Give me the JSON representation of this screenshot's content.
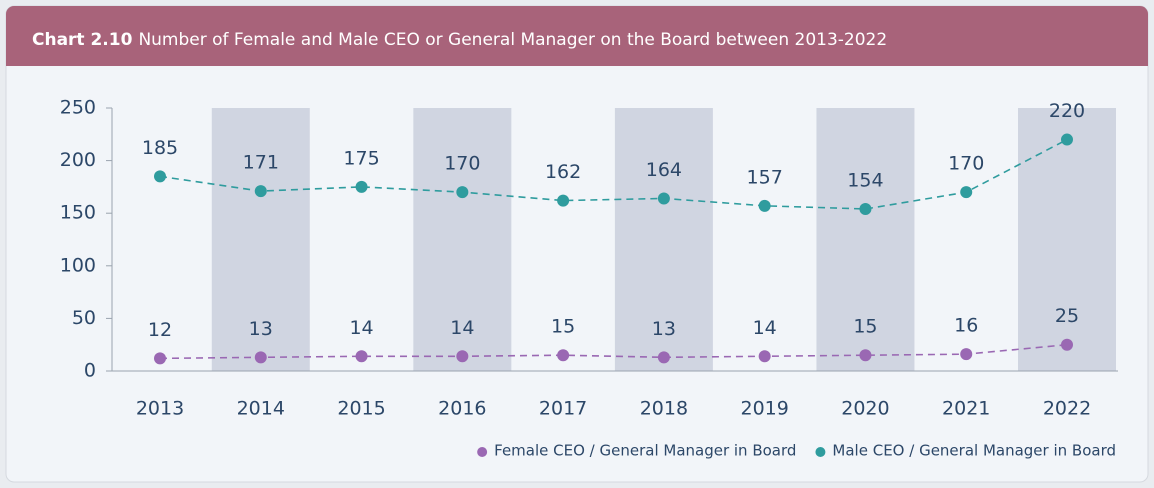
{
  "chart_data": {
    "type": "line",
    "title_label": "Chart 2.10",
    "title": "Number of Female and Male CEO or General Manager on the Board between 2013-2022",
    "categories": [
      "2013",
      "2014",
      "2015",
      "2016",
      "2017",
      "2018",
      "2019",
      "2020",
      "2021",
      "2022"
    ],
    "series": [
      {
        "name": "Female CEO / General Manager in Board",
        "color": "#9a68b3",
        "values": [
          12,
          13,
          14,
          14,
          15,
          13,
          14,
          15,
          16,
          25
        ]
      },
      {
        "name": "Male CEO / General Manager in Board",
        "color": "#2f9c9e",
        "values": [
          185,
          171,
          175,
          170,
          162,
          164,
          157,
          154,
          170,
          220
        ]
      }
    ],
    "ylim": [
      0,
      250
    ],
    "yticks": [
      0,
      50,
      100,
      150,
      200,
      250
    ],
    "legend": "bottom-right"
  }
}
